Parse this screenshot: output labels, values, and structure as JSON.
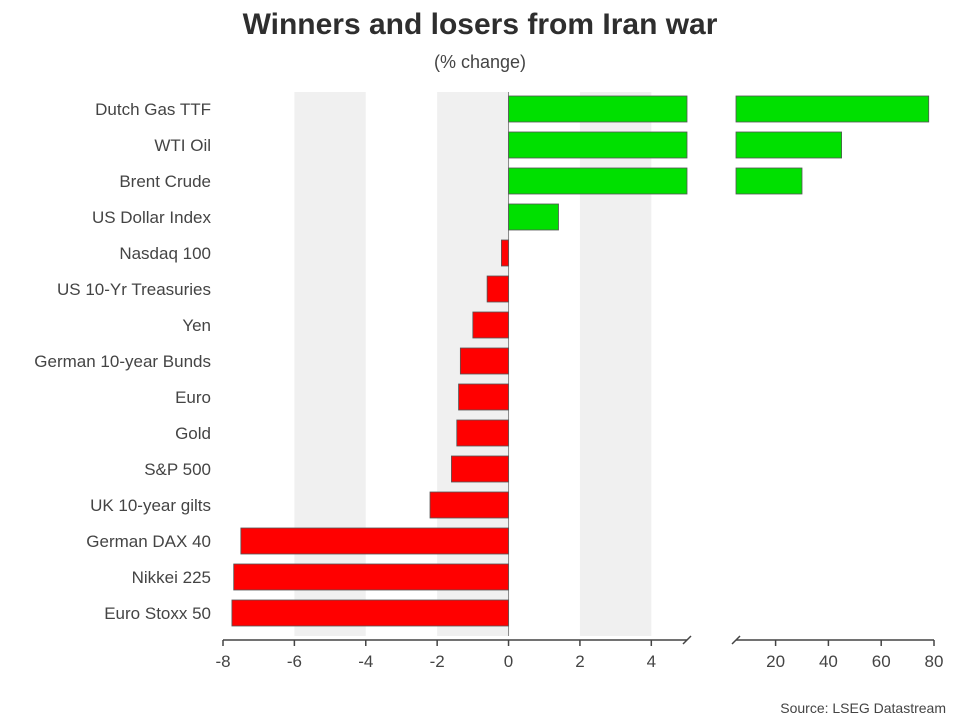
{
  "chart_data": {
    "type": "bar",
    "orientation": "horizontal",
    "title": "Winners and losers from Iran war",
    "subtitle": "(% change)",
    "source": "Source: LSEG Datastream",
    "categories": [
      "Dutch Gas TTF",
      "WTI Oil",
      "Brent Crude",
      "US Dollar Index",
      "Nasdaq 100",
      "US 10-Yr Treasuries",
      "Yen",
      "German 10-year Bunds",
      "Euro",
      "Gold",
      "S&P 500",
      "UK 10-year gilts",
      "German DAX 40",
      "Nikkei 225",
      "Euro Stoxx 50"
    ],
    "values": [
      78,
      45,
      30,
      1.4,
      -0.2,
      -0.6,
      -1.0,
      -1.35,
      -1.4,
      -1.45,
      -1.6,
      -2.2,
      -7.5,
      -7.7,
      -7.75
    ],
    "left_axis": {
      "range": [
        -8,
        5
      ],
      "ticks": [
        -8,
        -6,
        -4,
        -2,
        0,
        2,
        4
      ]
    },
    "right_axis": {
      "range": [
        5,
        80
      ],
      "ticks": [
        20,
        40,
        60,
        80
      ]
    },
    "shaded_bands": [
      [
        -6,
        -4
      ],
      [
        -2,
        0
      ],
      [
        2,
        4
      ]
    ],
    "colors": {
      "positive": "#00e000",
      "negative": "#ff0000",
      "band": "#f0f0f0",
      "axis": "#444444"
    }
  }
}
